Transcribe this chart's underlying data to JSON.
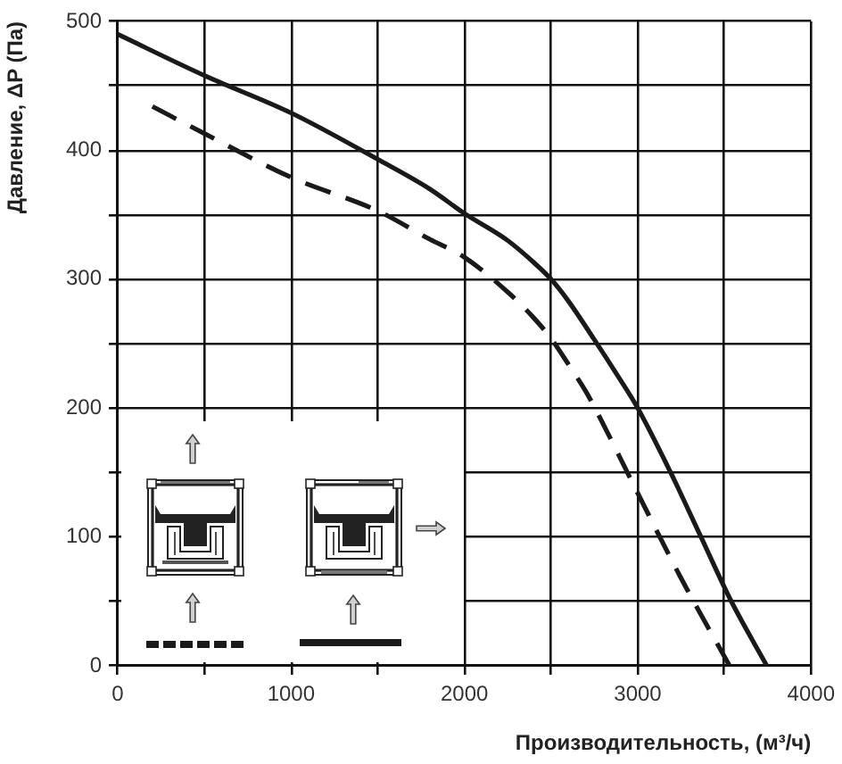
{
  "chart_data": {
    "type": "line",
    "xlabel": "Производительность, (м³/ч)",
    "ylabel": "Давление, ΔP (Па)",
    "series": [
      {
        "color": "#1a1a1a",
        "line_style": "solid",
        "x": [
          0,
          500,
          1000,
          1500,
          1800,
          2000,
          2250,
          2400,
          2500,
          2600,
          2750,
          2880,
          3000,
          3190,
          3365,
          3540,
          3745
        ],
        "values": [
          490,
          458,
          429,
          393,
          370,
          351,
          330,
          313,
          300,
          283,
          253,
          226,
          200,
          150,
          100,
          50,
          0
        ]
      },
      {
        "color": "#1a1a1a",
        "line_style": "dashed",
        "x": [
          200,
          500,
          1000,
          1500,
          1800,
          2000,
          2250,
          2400,
          2500,
          2600,
          2700,
          2780,
          3000,
          3250,
          3530
        ],
        "values": [
          434,
          413,
          379,
          353,
          331,
          317,
          290,
          270,
          254,
          234,
          213,
          193,
          134,
          68,
          0
        ]
      }
    ],
    "xlim": [
      0,
      4000
    ],
    "ylim": [
      0,
      500
    ],
    "xticks": [
      0,
      {
        "value": 500,
        "label": null
      },
      1000,
      {
        "value": 1500,
        "label": null
      },
      2000,
      {
        "value": 2500,
        "label": null
      },
      3000,
      {
        "value": 3500,
        "label": null
      },
      4000
    ],
    "yticks": [
      0,
      {
        "value": 50,
        "label": null
      },
      100,
      {
        "value": 150,
        "label": null
      },
      200,
      {
        "value": 250,
        "label": null
      },
      300,
      {
        "value": 350,
        "label": null
      },
      400,
      {
        "value": 450,
        "label": null
      },
      500
    ],
    "grid": true,
    "marker": "none"
  }
}
